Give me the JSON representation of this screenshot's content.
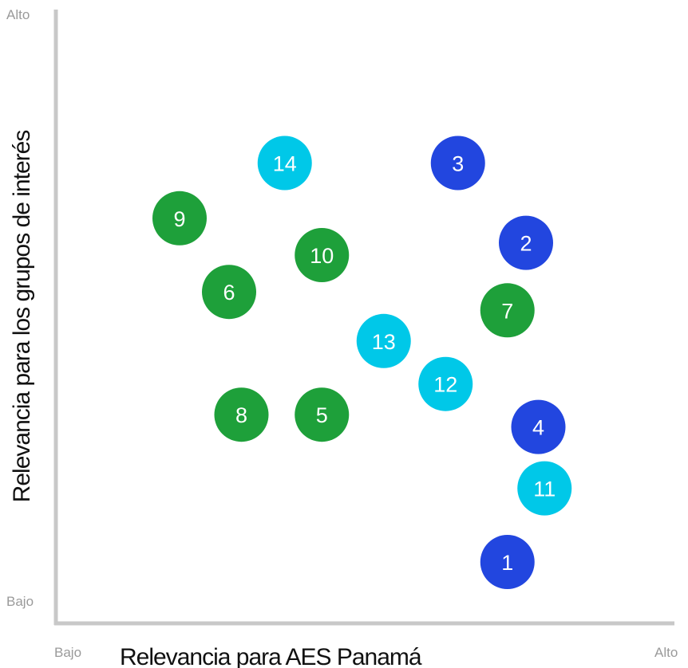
{
  "chart_data": {
    "type": "scatter",
    "xlabel": "Relevancia para AES Panamá",
    "ylabel": "Relevancia para los grupos de interés",
    "x_tick_low": "Bajo",
    "x_tick_high": "Alto",
    "y_tick_low": "Bajo",
    "y_tick_high": "Alto",
    "xlim": [
      0,
      10
    ],
    "ylim": [
      0,
      10
    ],
    "grid": false,
    "colors": {
      "green": "#1ea03a",
      "cyan": "#00c8e8",
      "blue": "#2246df",
      "axis": "#c8c8c8"
    },
    "points": [
      {
        "label": "1",
        "x": 7.3,
        "y": 1.0,
        "color": "blue"
      },
      {
        "label": "2",
        "x": 7.6,
        "y": 6.2,
        "color": "blue"
      },
      {
        "label": "3",
        "x": 6.5,
        "y": 7.5,
        "color": "blue"
      },
      {
        "label": "4",
        "x": 7.8,
        "y": 3.2,
        "color": "blue"
      },
      {
        "label": "5",
        "x": 4.3,
        "y": 3.4,
        "color": "green"
      },
      {
        "label": "6",
        "x": 2.8,
        "y": 5.4,
        "color": "green"
      },
      {
        "label": "7",
        "x": 7.3,
        "y": 5.1,
        "color": "green"
      },
      {
        "label": "8",
        "x": 3.0,
        "y": 3.4,
        "color": "green"
      },
      {
        "label": "9",
        "x": 2.0,
        "y": 6.6,
        "color": "green"
      },
      {
        "label": "10",
        "x": 4.3,
        "y": 6.0,
        "color": "green"
      },
      {
        "label": "11",
        "x": 7.9,
        "y": 2.2,
        "color": "cyan"
      },
      {
        "label": "12",
        "x": 6.3,
        "y": 3.9,
        "color": "cyan"
      },
      {
        "label": "13",
        "x": 5.3,
        "y": 4.6,
        "color": "cyan"
      },
      {
        "label": "14",
        "x": 3.7,
        "y": 7.5,
        "color": "cyan"
      }
    ]
  }
}
